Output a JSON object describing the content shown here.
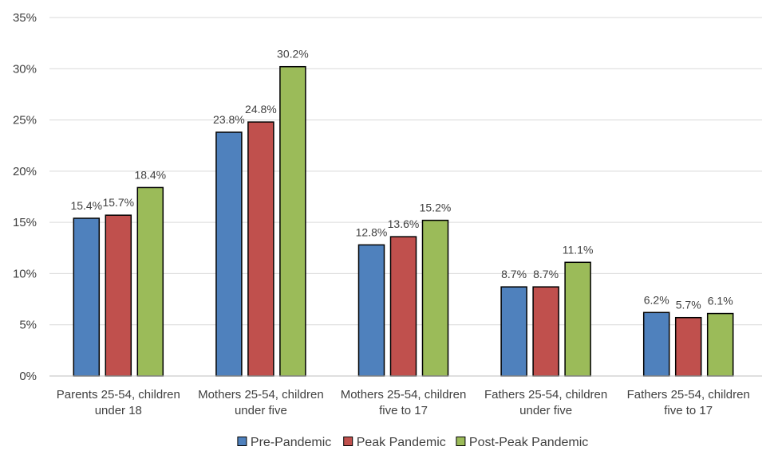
{
  "chart_data": {
    "type": "bar",
    "title": "",
    "xlabel": "",
    "ylabel": "",
    "ylim": [
      0,
      35
    ],
    "y_ticks": [
      "0%",
      "5%",
      "10%",
      "15%",
      "20%",
      "25%",
      "30%",
      "35%"
    ],
    "y_tick_values": [
      0,
      5,
      10,
      15,
      20,
      25,
      30,
      35
    ],
    "grid": true,
    "legend_position": "bottom",
    "categories": [
      [
        "Parents 25-54, children",
        "under 18"
      ],
      [
        "Mothers 25-54, children",
        "under five"
      ],
      [
        "Mothers 25-54, children",
        "five to 17"
      ],
      [
        "Fathers 25-54, children",
        "under five"
      ],
      [
        "Fathers 25-54, children",
        "five to 17"
      ]
    ],
    "series": [
      {
        "name": "Pre-Pandemic",
        "color": "#4f81bd",
        "values": [
          15.4,
          23.8,
          12.8,
          8.7,
          6.2
        ],
        "labels": [
          "15.4%",
          "23.8%",
          "12.8%",
          "8.7%",
          "6.2%"
        ]
      },
      {
        "name": "Peak Pandemic",
        "color": "#c0504d",
        "values": [
          15.7,
          24.8,
          13.6,
          8.7,
          5.7
        ],
        "labels": [
          "15.7%",
          "24.8%",
          "13.6%",
          "8.7%",
          "5.7%"
        ]
      },
      {
        "name": "Post-Peak Pandemic",
        "color": "#9bbb59",
        "values": [
          18.4,
          30.2,
          15.2,
          11.1,
          6.1
        ],
        "labels": [
          "18.4%",
          "30.2%",
          "15.2%",
          "11.1%",
          "6.1%"
        ]
      }
    ]
  }
}
